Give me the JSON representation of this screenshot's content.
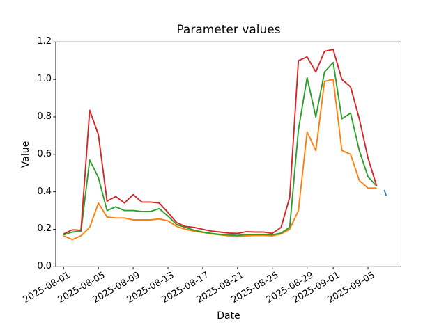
{
  "figure": {
    "background_color": "#ffffff",
    "text_color": "#000000",
    "spine_color": "#000000"
  },
  "chart_data": {
    "type": "line",
    "title": "Parameter values",
    "xlabel": "Date",
    "ylabel": "Value",
    "ylim": [
      0.0,
      1.2
    ],
    "grid": false,
    "legend_position": "none",
    "yticks": [
      "0.0",
      "0.2",
      "0.4",
      "0.6",
      "0.8",
      "1.0",
      "1.2"
    ],
    "xticks": [
      "2025-08-01",
      "2025-08-05",
      "2025-08-09",
      "2025-08-13",
      "2025-08-17",
      "2025-08-21",
      "2025-08-25",
      "2025-08-29",
      "2025-09-01",
      "2025-09-05"
    ],
    "x_dates": [
      "2025-08-01",
      "2025-08-02",
      "2025-08-03",
      "2025-08-04",
      "2025-08-05",
      "2025-08-06",
      "2025-08-07",
      "2025-08-08",
      "2025-08-09",
      "2025-08-10",
      "2025-08-11",
      "2025-08-12",
      "2025-08-13",
      "2025-08-14",
      "2025-08-15",
      "2025-08-16",
      "2025-08-17",
      "2025-08-18",
      "2025-08-19",
      "2025-08-20",
      "2025-08-21",
      "2025-08-22",
      "2025-08-23",
      "2025-08-24",
      "2025-08-25",
      "2025-08-26",
      "2025-08-27",
      "2025-08-28",
      "2025-08-29",
      "2025-08-30",
      "2025-08-31",
      "2025-09-01",
      "2025-09-02",
      "2025-09-03",
      "2025-09-04",
      "2025-09-05",
      "2025-09-06"
    ],
    "series": [
      {
        "name": "series-blue-fragment",
        "color": "#1f77b4",
        "x_day_offsets": [
          36.88,
          37.08
        ],
        "values": [
          0.41,
          0.38
        ]
      },
      {
        "name": "series-orange",
        "color": "#ff7f0e",
        "values": [
          0.165,
          0.145,
          0.165,
          0.21,
          0.34,
          0.265,
          0.26,
          0.26,
          0.25,
          0.25,
          0.25,
          0.255,
          0.245,
          0.215,
          0.2,
          0.19,
          0.183,
          0.175,
          0.17,
          0.165,
          0.162,
          0.165,
          0.167,
          0.167,
          0.165,
          0.175,
          0.2,
          0.3,
          0.72,
          0.62,
          0.99,
          1.0,
          0.62,
          0.6,
          0.46,
          0.42,
          0.42
        ]
      },
      {
        "name": "series-green",
        "color": "#2ca02c",
        "values": [
          0.17,
          0.185,
          0.19,
          0.57,
          0.476,
          0.3,
          0.32,
          0.3,
          0.3,
          0.295,
          0.295,
          0.31,
          0.27,
          0.225,
          0.21,
          0.195,
          0.185,
          0.178,
          0.172,
          0.17,
          0.167,
          0.172,
          0.172,
          0.172,
          0.17,
          0.18,
          0.21,
          0.73,
          1.01,
          0.8,
          1.04,
          1.09,
          0.79,
          0.82,
          0.62,
          0.48,
          0.43
        ]
      },
      {
        "name": "series-red",
        "color": "#d62728",
        "values": [
          0.175,
          0.197,
          0.195,
          0.835,
          0.705,
          0.35,
          0.375,
          0.34,
          0.385,
          0.345,
          0.345,
          0.34,
          0.29,
          0.235,
          0.215,
          0.21,
          0.2,
          0.19,
          0.185,
          0.18,
          0.178,
          0.187,
          0.185,
          0.185,
          0.178,
          0.21,
          0.37,
          1.1,
          1.12,
          1.04,
          1.15,
          1.16,
          1.0,
          0.96,
          0.79,
          0.58,
          0.43
        ]
      }
    ]
  }
}
